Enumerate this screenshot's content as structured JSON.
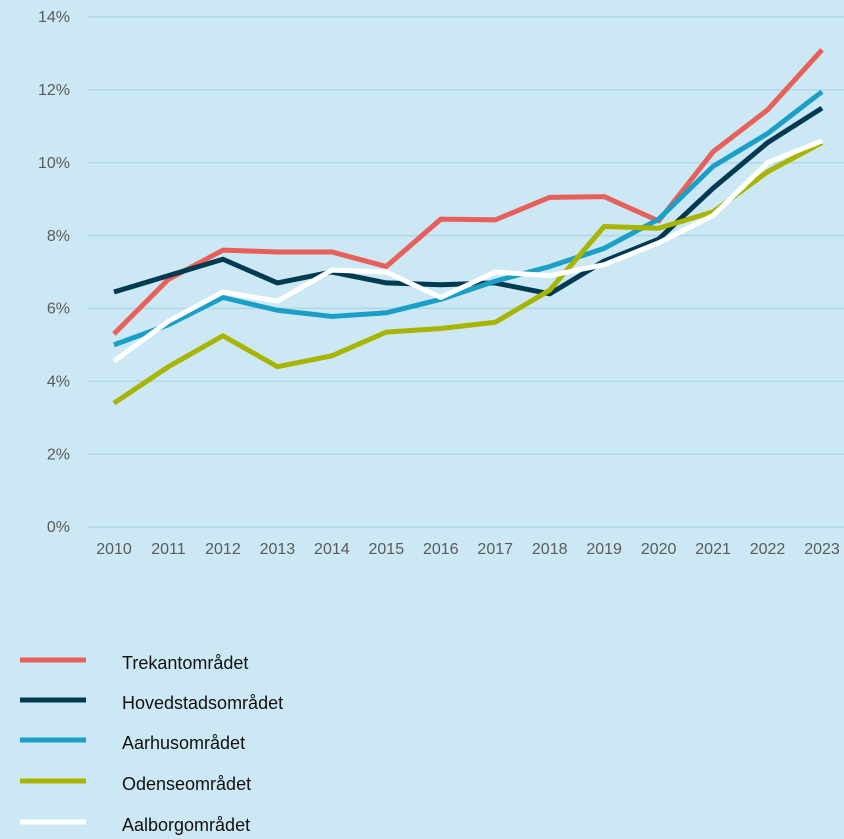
{
  "chart_data": {
    "type": "line",
    "categories": [
      "2010",
      "2011",
      "2012",
      "2013",
      "2014",
      "2015",
      "2016",
      "2017",
      "2018",
      "2019",
      "2020",
      "2021",
      "2022",
      "2023"
    ],
    "series": [
      {
        "name": "Trekantområdet",
        "color": "#e8605a",
        "values": [
          5.3,
          6.8,
          7.6,
          7.55,
          7.55,
          7.15,
          8.45,
          8.43,
          9.05,
          9.07,
          8.4,
          10.3,
          11.45,
          13.1
        ]
      },
      {
        "name": "Hovedstadsområdet",
        "color": "#003a50",
        "values": [
          6.45,
          6.9,
          7.35,
          6.7,
          7.0,
          6.7,
          6.65,
          6.7,
          6.4,
          7.3,
          7.9,
          9.3,
          10.55,
          11.5
        ]
      },
      {
        "name": "Aarhusområdet",
        "color": "#1a9fc6",
        "values": [
          5.0,
          5.55,
          6.3,
          5.95,
          5.78,
          5.88,
          6.25,
          6.75,
          7.15,
          7.65,
          8.45,
          9.9,
          10.8,
          11.95
        ]
      },
      {
        "name": "Odenseområdet",
        "color": "#a8b400",
        "values": [
          3.4,
          4.4,
          5.25,
          4.4,
          4.7,
          5.35,
          5.45,
          5.62,
          6.5,
          8.25,
          8.2,
          8.65,
          9.75,
          10.55
        ]
      },
      {
        "name": "Aalborgområdet",
        "color": "#ffffff",
        "values": [
          4.55,
          5.65,
          6.45,
          6.2,
          7.05,
          7.0,
          6.3,
          7.0,
          6.9,
          7.2,
          7.8,
          8.55,
          10.0,
          10.6
        ]
      }
    ],
    "ylim": [
      0,
      14
    ],
    "yticks": [
      {
        "value": 0,
        "label": "0%"
      },
      {
        "value": 2,
        "label": "2%"
      },
      {
        "value": 4,
        "label": "4%"
      },
      {
        "value": 6,
        "label": "6%"
      },
      {
        "value": 8,
        "label": "8%"
      },
      {
        "value": 10,
        "label": "10%"
      },
      {
        "value": 12,
        "label": "12%"
      },
      {
        "value": 14,
        "label": "14%"
      }
    ],
    "grid": true,
    "legend": "bottom"
  }
}
